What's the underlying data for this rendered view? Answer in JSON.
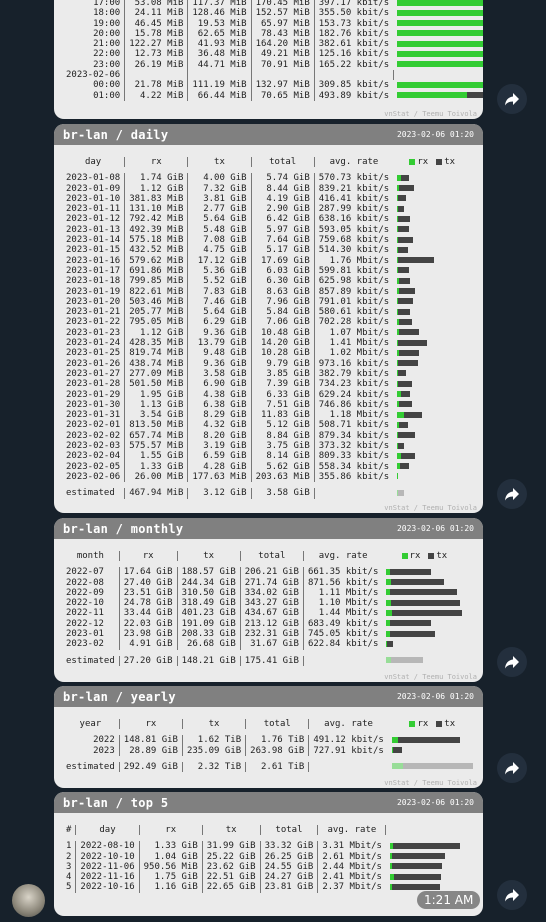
{
  "hourly": {
    "footer": "vnStat / Teemu Toivola",
    "rows": [
      [
        "17:00",
        "53.08 MiB",
        "117.37 MiB",
        "170.45 MiB",
        "397.17 kbit/s",
        12,
        30
      ],
      [
        "18:00",
        "24.11 MiB",
        "128.46 MiB",
        "152.57 MiB",
        "355.50 kbit/s",
        6,
        33
      ],
      [
        "19:00",
        "46.45 MiB",
        "19.53 MiB",
        "65.97 MiB",
        "153.73 kbit/s",
        11,
        5
      ],
      [
        "20:00",
        "15.78 MiB",
        "62.65 MiB",
        "78.43 MiB",
        "182.76 kbit/s",
        4,
        16
      ],
      [
        "21:00",
        "122.27 MiB",
        "41.93 MiB",
        "164.20 MiB",
        "382.61 kbit/s",
        28,
        11
      ],
      [
        "22:00",
        "12.73 MiB",
        "36.48 MiB",
        "49.21 MiB",
        "125.16 kbit/s",
        3,
        9
      ],
      [
        "23:00",
        "26.19 MiB",
        "44.71 MiB",
        "70.91 MiB",
        "165.22 kbit/s",
        6,
        11
      ],
      [
        "2023-02-06",
        "",
        "",
        "",
        "",
        0,
        0
      ],
      [
        "00:00",
        "21.78 MiB",
        "111.19 MiB",
        "132.97 MiB",
        "309.85 kbit/s",
        5,
        28
      ],
      [
        "01:00",
        "4.22 MiB",
        "66.44 MiB",
        "70.65 MiB",
        "493.89 kbit/s",
        1,
        17
      ]
    ]
  },
  "daily": {
    "title": "br-lan / daily",
    "date": "2023-02-06 01:20",
    "footer": "vnStat / Teemu Toivola",
    "headers": [
      "day",
      "rx",
      "tx",
      "total",
      "avg. rate"
    ],
    "legend_rx": "rx",
    "legend_tx": "tx",
    "rows": [
      [
        "2023-01-08",
        "1.74 GiB",
        "4.00 GiB",
        "5.74 GiB",
        "570.73 kbit/s",
        0.05,
        0.12
      ],
      [
        "2023-01-09",
        "1.12 GiB",
        "7.32 GiB",
        "8.44 GiB",
        "839.21 kbit/s",
        0.03,
        0.22
      ],
      [
        "2023-01-10",
        "381.83 MiB",
        "3.81 GiB",
        "4.19 GiB",
        "416.41 kbit/s",
        0.01,
        0.11
      ],
      [
        "2023-01-11",
        "131.10 MiB",
        "2.77 GiB",
        "2.90 GiB",
        "287.99 kbit/s",
        0.004,
        0.08
      ],
      [
        "2023-01-12",
        "792.42 MiB",
        "5.64 GiB",
        "6.42 GiB",
        "638.16 kbit/s",
        0.02,
        0.17
      ],
      [
        "2023-01-13",
        "492.39 MiB",
        "5.48 GiB",
        "5.97 GiB",
        "593.05 kbit/s",
        0.015,
        0.16
      ],
      [
        "2023-01-14",
        "575.18 MiB",
        "7.08 GiB",
        "7.64 GiB",
        "759.68 kbit/s",
        0.017,
        0.21
      ],
      [
        "2023-01-15",
        "432.52 MiB",
        "4.75 GiB",
        "5.17 GiB",
        "514.30 kbit/s",
        0.013,
        0.14
      ],
      [
        "2023-01-16",
        "579.62 MiB",
        "17.12 GiB",
        "17.69 GiB",
        "1.76 Mbit/s",
        0.017,
        0.51
      ],
      [
        "2023-01-17",
        "691.86 MiB",
        "5.36 GiB",
        "6.03 GiB",
        "599.81 kbit/s",
        0.02,
        0.16
      ],
      [
        "2023-01-18",
        "799.85 MiB",
        "5.52 GiB",
        "6.30 GiB",
        "625.98 kbit/s",
        0.024,
        0.16
      ],
      [
        "2023-01-19",
        "822.61 MiB",
        "7.83 GiB",
        "8.63 GiB",
        "857.89 kbit/s",
        0.024,
        0.23
      ],
      [
        "2023-01-20",
        "503.46 MiB",
        "7.46 GiB",
        "7.96 GiB",
        "791.01 kbit/s",
        0.015,
        0.22
      ],
      [
        "2023-01-21",
        "205.77 MiB",
        "5.64 GiB",
        "5.84 GiB",
        "580.61 kbit/s",
        0.006,
        0.17
      ],
      [
        "2023-01-22",
        "795.05 MiB",
        "6.29 GiB",
        "7.06 GiB",
        "702.28 kbit/s",
        0.023,
        0.19
      ],
      [
        "2023-01-23",
        "1.12 GiB",
        "9.36 GiB",
        "10.48 GiB",
        "1.07 Mbit/s",
        0.03,
        0.28
      ],
      [
        "2023-01-24",
        "428.35 MiB",
        "13.79 GiB",
        "14.20 GiB",
        "1.41 Mbit/s",
        0.013,
        0.41
      ],
      [
        "2023-01-25",
        "819.74 MiB",
        "9.48 GiB",
        "10.28 GiB",
        "1.02 Mbit/s",
        0.024,
        0.28
      ],
      [
        "2023-01-26",
        "438.74 MiB",
        "9.36 GiB",
        "9.79 GiB",
        "973.16 kbit/s",
        0.013,
        0.28
      ],
      [
        "2023-01-27",
        "277.09 MiB",
        "3.58 GiB",
        "3.85 GiB",
        "382.79 kbit/s",
        0.008,
        0.11
      ],
      [
        "2023-01-28",
        "501.50 MiB",
        "6.90 GiB",
        "7.39 GiB",
        "734.23 kbit/s",
        0.015,
        0.2
      ],
      [
        "2023-01-29",
        "1.95 GiB",
        "4.38 GiB",
        "6.33 GiB",
        "629.24 kbit/s",
        0.06,
        0.13
      ],
      [
        "2023-01-30",
        "1.13 GiB",
        "6.38 GiB",
        "7.51 GiB",
        "746.86 kbit/s",
        0.03,
        0.19
      ],
      [
        "2023-01-31",
        "3.54 GiB",
        "8.29 GiB",
        "11.83 GiB",
        "1.18 Mbit/s",
        0.1,
        0.25
      ],
      [
        "2023-02-01",
        "813.50 MiB",
        "4.32 GiB",
        "5.12 GiB",
        "508.71 kbit/s",
        0.024,
        0.13
      ],
      [
        "2023-02-02",
        "657.74 MiB",
        "8.20 GiB",
        "8.84 GiB",
        "879.34 kbit/s",
        0.02,
        0.24
      ],
      [
        "2023-02-03",
        "575.57 MiB",
        "3.19 GiB",
        "3.75 GiB",
        "373.32 kbit/s",
        0.017,
        0.09
      ],
      [
        "2023-02-04",
        "1.55 GiB",
        "6.59 GiB",
        "8.14 GiB",
        "809.33 kbit/s",
        0.05,
        0.2
      ],
      [
        "2023-02-05",
        "1.33 GiB",
        "4.28 GiB",
        "5.62 GiB",
        "558.34 kbit/s",
        0.04,
        0.13
      ],
      [
        "2023-02-06",
        "26.00 MiB",
        "177.63 MiB",
        "203.63 MiB",
        "355.86 kbit/s",
        0.001,
        0.005
      ]
    ],
    "estimated": [
      "estimated",
      "467.94 MiB",
      "3.12 GiB",
      "3.58 GiB",
      "",
      0.013,
      0.09
    ]
  },
  "monthly": {
    "title": "br-lan / monthly",
    "date": "2023-02-06 01:20",
    "footer": "vnStat / Teemu Toivola",
    "headers": [
      "month",
      "rx",
      "tx",
      "total",
      "avg. rate"
    ],
    "legend_rx": "rx",
    "legend_tx": "tx",
    "rows": [
      [
        "2022-07",
        "17.64 GiB",
        "188.57 GiB",
        "206.21 GiB",
        "661.35 kbit/s",
        0.05,
        0.58
      ],
      [
        "2022-08",
        "27.40 GiB",
        "244.34 GiB",
        "271.74 GiB",
        "871.56 kbit/s",
        0.07,
        0.75
      ],
      [
        "2022-09",
        "23.51 GiB",
        "310.50 GiB",
        "334.02 GiB",
        "1.11 Mbit/s",
        0.06,
        0.96
      ],
      [
        "2022-10",
        "24.78 GiB",
        "318.49 GiB",
        "343.27 GiB",
        "1.10 Mbit/s",
        0.065,
        0.98
      ],
      [
        "2022-11",
        "33.44 GiB",
        "401.23 GiB",
        "434.67 GiB",
        "1.44 Mbit/s",
        0.09,
        1.0
      ],
      [
        "2022-12",
        "22.03 GiB",
        "191.09 GiB",
        "213.12 GiB",
        "683.49 kbit/s",
        0.06,
        0.59
      ],
      [
        "2023-01",
        "23.98 GiB",
        "208.33 GiB",
        "232.31 GiB",
        "745.05 kbit/s",
        0.06,
        0.64
      ],
      [
        "2023-02",
        "4.91 GiB",
        "26.68 GiB",
        "31.67 GiB",
        "622.84 kbit/s",
        0.013,
        0.08
      ]
    ],
    "estimated": [
      "estimated",
      "27.20 GiB",
      "148.21 GiB",
      "175.41 GiB",
      "",
      0.07,
      0.46
    ]
  },
  "yearly": {
    "title": "br-lan / yearly",
    "date": "2023-02-06 01:20",
    "footer": "vnStat / Teemu Toivola",
    "headers": [
      "year",
      "rx",
      "tx",
      "total",
      "avg. rate"
    ],
    "legend_rx": "rx",
    "legend_tx": "tx",
    "rows": [
      [
        "2022",
        "148.81 GiB",
        "1.62 TiB",
        "1.76 TiB",
        "491.12 kbit/s",
        0.08,
        0.88
      ],
      [
        "2023",
        "28.89 GiB",
        "235.09 GiB",
        "263.98 GiB",
        "727.91 kbit/s",
        0.015,
        0.13
      ]
    ],
    "estimated": [
      "estimated",
      "292.49 GiB",
      "2.32 TiB",
      "2.61 TiB",
      "",
      0.16,
      1.0
    ]
  },
  "top5": {
    "title": "br-lan / top 5",
    "date": "2023-02-06 01:20",
    "headers": [
      "#",
      "day",
      "rx",
      "tx",
      "total",
      "avg. rate"
    ],
    "rows": [
      [
        "1",
        "2022-08-10",
        "1.33 GiB",
        "31.99 GiB",
        "33.32 GiB",
        "3.31 Mbit/s",
        0.04,
        0.96
      ],
      [
        "2",
        "2022-10-10",
        "1.04 GiB",
        "25.22 GiB",
        "26.25 GiB",
        "2.61 Mbit/s",
        0.03,
        0.76
      ],
      [
        "3",
        "2022-11-06",
        "950.56 MiB",
        "23.62 GiB",
        "24.55 GiB",
        "2.44 Mbit/s",
        0.03,
        0.71
      ],
      [
        "4",
        "2022-11-16",
        "1.75 GiB",
        "22.51 GiB",
        "24.27 GiB",
        "2.41 Mbit/s",
        0.05,
        0.67
      ],
      [
        "5",
        "2022-10-16",
        "1.16 GiB",
        "22.65 GiB",
        "23.81 GiB",
        "2.37 Mbit/s",
        0.035,
        0.68
      ]
    ]
  },
  "message_time": "1:21 AM",
  "icons": {
    "share": "share-icon",
    "avatar": "avatar"
  }
}
